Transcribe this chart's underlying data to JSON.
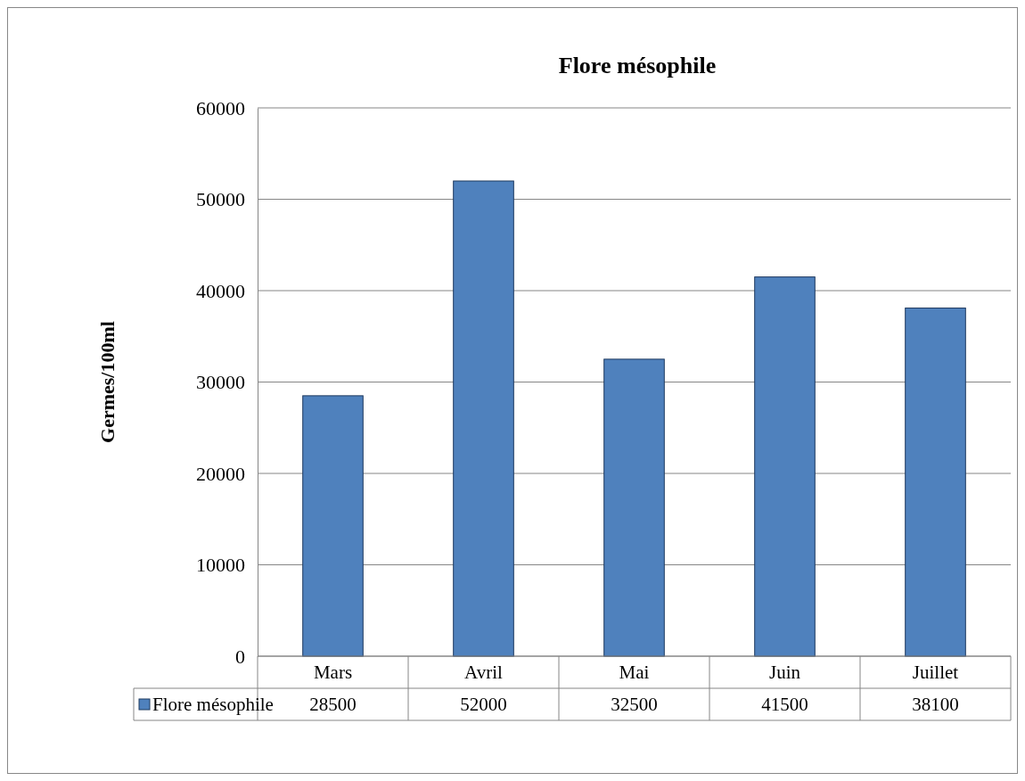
{
  "chart_data": {
    "type": "bar",
    "title": "Flore mésophile",
    "ylabel": "Germes/100ml",
    "categories": [
      "Mars",
      "Avril",
      "Mai",
      "Juin",
      "Juillet"
    ],
    "series": [
      {
        "name": "Flore mésophile",
        "color": "#4f81bd",
        "values": [
          28500,
          52000,
          32500,
          41500,
          38100
        ]
      }
    ],
    "ylim": [
      0,
      60000
    ],
    "yticks": [
      0,
      10000,
      20000,
      30000,
      40000,
      50000,
      60000
    ],
    "grid": "y",
    "legend": "bottom left",
    "data_labels": true
  }
}
